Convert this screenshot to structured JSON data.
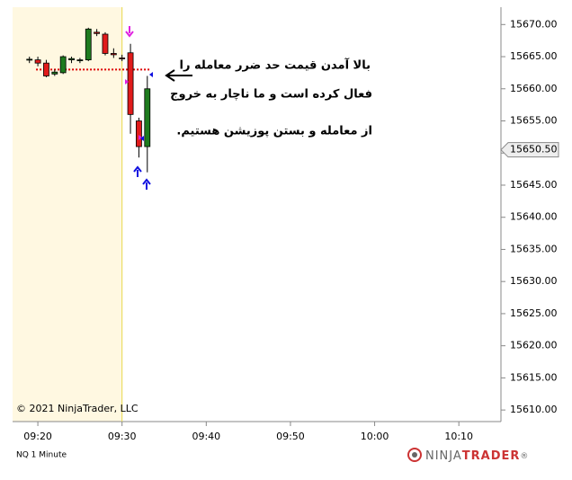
{
  "chart_data": {
    "type": "candlestick",
    "instrument": "NQ 1 Minute",
    "copyright": "© 2021 NinjaTrader, LLC",
    "logo": [
      "NINJA",
      "TRADER",
      "®"
    ],
    "annotation": [
      "بالا آمدن قیمت حد ضرر معامله را",
      "فعال کرده است و ما ناچار به خروج",
      "از معامله و بستن پوزیشن هستیم."
    ],
    "x": [
      "09:19",
      "09:20",
      "09:21",
      "09:22",
      "09:23",
      "09:24",
      "09:25",
      "09:26",
      "09:27",
      "09:28",
      "09:29",
      "09:30",
      "09:31",
      "09:32",
      "09:33"
    ],
    "open": [
      15664.5,
      15664.5,
      15664.0,
      15662.3,
      15662.5,
      15664.5,
      15664.4,
      15664.5,
      15668.8,
      15668.5,
      15665.5,
      15664.8,
      15665.6,
      15655.0,
      15651.0
    ],
    "high": [
      15665.0,
      15665.0,
      15664.5,
      15663.0,
      15665.2,
      15665.0,
      15664.8,
      15669.5,
      15669.3,
      15668.8,
      15666.3,
      15665.3,
      15667.0,
      15655.5,
      15662.0
    ],
    "low": [
      15664.0,
      15663.5,
      15661.8,
      15662.0,
      15662.3,
      15664.0,
      15664.0,
      15664.3,
      15668.2,
      15665.2,
      15664.8,
      15664.3,
      15653.0,
      15649.3,
      15647.0
    ],
    "close": [
      15664.6,
      15664.0,
      15662.0,
      15662.6,
      15665.0,
      15664.7,
      15664.5,
      15669.3,
      15668.6,
      15665.5,
      15665.3,
      15664.7,
      15656.0,
      15651.0,
      15660.0
    ],
    "up_color": "#1e7b1e",
    "down_color": "#e01b1b",
    "stop_level": 15663,
    "session_start": "09:30",
    "price_marker": {
      "value": 15650.5,
      "label": "15650.50"
    },
    "xlim": [
      "09:17",
      "10:15"
    ],
    "xticks": [
      "09:20",
      "09:30",
      "09:40",
      "09:50",
      "10:00",
      "10:10"
    ],
    "ylim": [
      15608.2,
      15672.7
    ],
    "yticks": [
      {
        "value": 15610,
        "label": "15610.00"
      },
      {
        "value": 15615,
        "label": "15615.00"
      },
      {
        "value": 15620,
        "label": "15620.00"
      },
      {
        "value": 15625,
        "label": "15625.00"
      },
      {
        "value": 15630,
        "label": "15630.00"
      },
      {
        "value": 15635,
        "label": "15635.00"
      },
      {
        "value": 15640,
        "label": "15640.00"
      },
      {
        "value": 15645,
        "label": "15645.00"
      },
      {
        "value": 15650,
        "label": "15650.00"
      },
      {
        "value": 15655,
        "label": "15655.00"
      },
      {
        "value": 15660,
        "label": "15660.00"
      },
      {
        "value": 15665,
        "label": "15665.00"
      },
      {
        "value": 15670,
        "label": "15670.00"
      }
    ]
  }
}
